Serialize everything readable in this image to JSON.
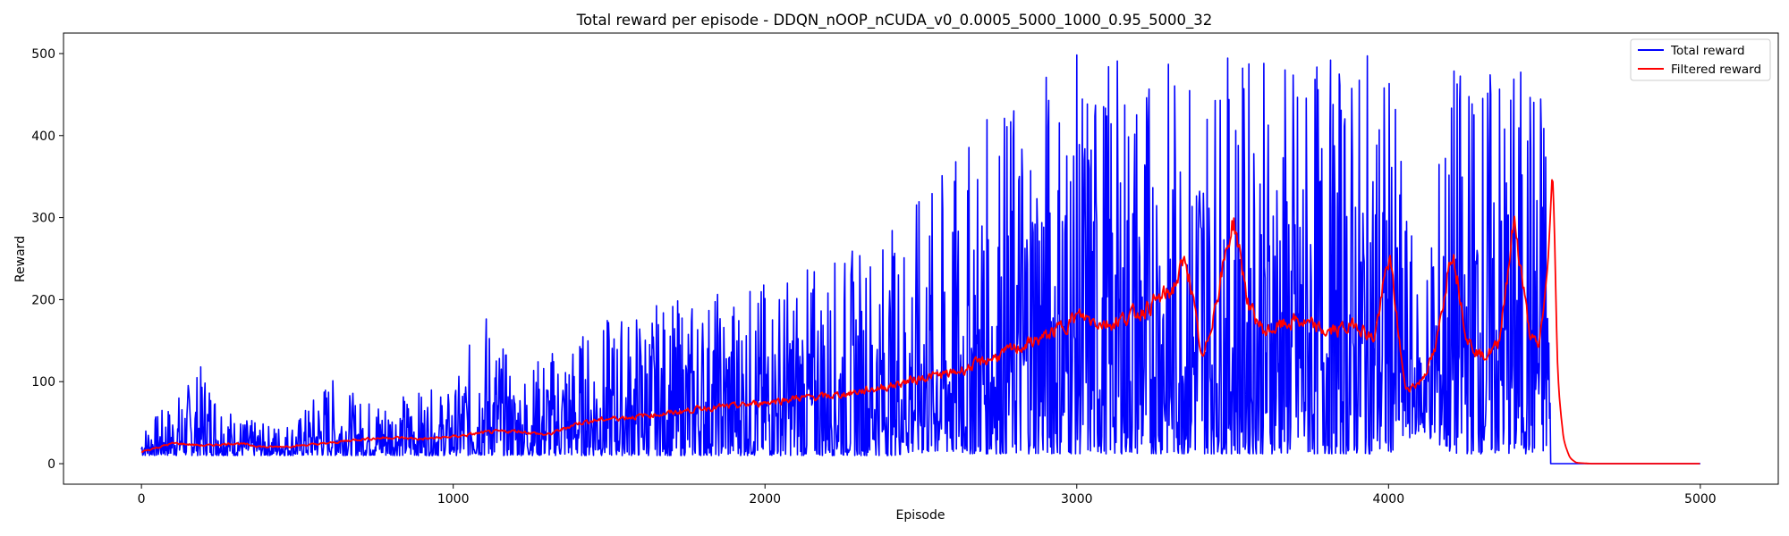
{
  "chart_data": {
    "type": "line",
    "title": "Total reward per episode - DDQN_nOOP_nCUDA_v0_0.0005_5000_1000_0.95_5000_32",
    "xlabel": "Episode",
    "ylabel": "Reward",
    "xlim": [
      -250,
      5250
    ],
    "ylim": [
      -25,
      525
    ],
    "xticks": [
      0,
      1000,
      2000,
      3000,
      4000,
      5000
    ],
    "yticks": [
      0,
      100,
      200,
      300,
      400,
      500
    ],
    "grid": false,
    "legend_position": "top-right",
    "series": [
      {
        "name": "Total reward",
        "color": "#0000ff",
        "x": [
          0,
          100,
          200,
          300,
          400,
          500,
          600,
          700,
          800,
          900,
          1000,
          1100,
          1200,
          1300,
          1400,
          1500,
          1600,
          1700,
          1800,
          1900,
          2000,
          2100,
          2200,
          2300,
          2400,
          2500,
          2600,
          2700,
          2800,
          2900,
          3000,
          3100,
          3200,
          3300,
          3400,
          3500,
          3600,
          3700,
          3800,
          3900,
          4000,
          4100,
          4200,
          4300,
          4400,
          4500,
          4510,
          4520,
          5000
        ],
        "low": [
          10,
          10,
          10,
          10,
          10,
          10,
          10,
          10,
          10,
          10,
          10,
          10,
          10,
          10,
          10,
          10,
          10,
          10,
          10,
          10,
          10,
          10,
          10,
          10,
          10,
          12,
          12,
          12,
          12,
          12,
          12,
          12,
          12,
          12,
          12,
          12,
          12,
          12,
          12,
          12,
          12,
          40,
          12,
          12,
          12,
          12,
          12,
          0,
          0
        ],
        "high": [
          45,
          78,
          125,
          60,
          48,
          55,
          110,
          80,
          85,
          90,
          90,
          200,
          110,
          140,
          160,
          180,
          195,
          200,
          210,
          220,
          225,
          240,
          250,
          270,
          290,
          330,
          370,
          420,
          460,
          500,
          500,
          500,
          500,
          500,
          500,
          500,
          500,
          500,
          500,
          500,
          500,
          200,
          500,
          500,
          500,
          500,
          500,
          0,
          0
        ]
      },
      {
        "name": "Filtered reward",
        "color": "#ff0000",
        "x": [
          0,
          50,
          100,
          200,
          300,
          400,
          500,
          600,
          700,
          800,
          900,
          1000,
          1100,
          1200,
          1300,
          1400,
          1500,
          1600,
          1700,
          1800,
          1900,
          2000,
          2100,
          2200,
          2300,
          2400,
          2500,
          2600,
          2700,
          2800,
          2900,
          3000,
          3100,
          3200,
          3300,
          3350,
          3400,
          3500,
          3550,
          3600,
          3700,
          3800,
          3900,
          3950,
          4000,
          4050,
          4100,
          4150,
          4200,
          4250,
          4300,
          4350,
          4400,
          4450,
          4480,
          4510,
          4525,
          4540,
          4560,
          4580,
          4600,
          4650,
          5000
        ],
        "y": [
          15,
          20,
          25,
          22,
          25,
          20,
          22,
          25,
          30,
          32,
          30,
          33,
          38,
          40,
          35,
          50,
          55,
          58,
          62,
          68,
          70,
          75,
          80,
          82,
          88,
          95,
          105,
          110,
          125,
          140,
          155,
          180,
          170,
          185,
          210,
          250,
          120,
          300,
          190,
          160,
          175,
          160,
          170,
          150,
          255,
          90,
          100,
          140,
          270,
          150,
          130,
          145,
          300,
          155,
          140,
          250,
          380,
          90,
          25,
          6,
          1,
          0,
          0
        ]
      }
    ]
  }
}
